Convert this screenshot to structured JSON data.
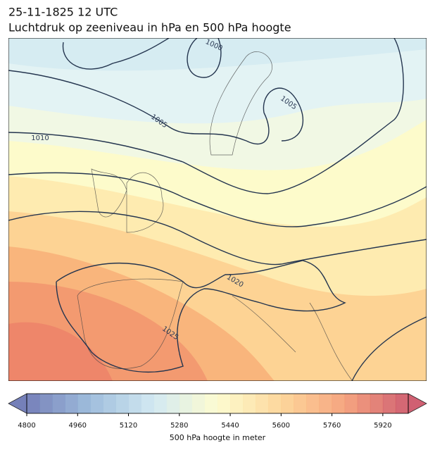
{
  "title": "25-11-1825 12 UTC",
  "subtitle": "Luchtdruk op zeeniveau in hPa en 500 hPa hoogte",
  "contour_labels": [
    "1000",
    "1005",
    "1005",
    "1010",
    "1020",
    "1025"
  ],
  "colorbar": {
    "min": 4800,
    "max": 6000,
    "step": 40,
    "ticks": [
      4800,
      4960,
      5120,
      5280,
      5440,
      5600,
      5760,
      5920
    ],
    "colors": [
      "#5e6aad",
      "#8fb2d6",
      "#cbe6f0",
      "#fdfbc8",
      "#fdd08a",
      "#f4956a",
      "#c8455a"
    ],
    "label": "500 hPa hoogte in meter"
  }
}
